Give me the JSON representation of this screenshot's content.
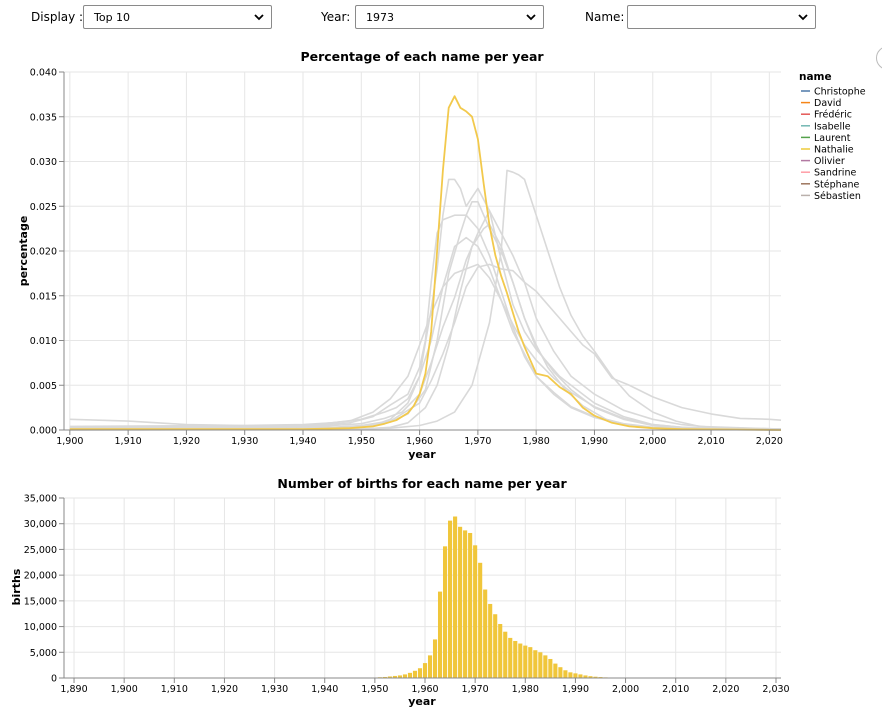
{
  "controls": {
    "display": {
      "label": "Display :",
      "value": "Top 10"
    },
    "year": {
      "label": "Year:",
      "value": "1973"
    },
    "name": {
      "label": "Name:",
      "value": ""
    }
  },
  "colors": {
    "highlight": "#f2c94c",
    "highlight_bar": "#f0c63a",
    "muted_line": "#d9d9d9",
    "grid": "#e6e6e6"
  },
  "icons": [
    "chevron-down-icon",
    "chevron-down-icon",
    "chevron-down-icon",
    "circle-button-icon"
  ],
  "chart_data": [
    {
      "type": "line",
      "title": "Percentage of each name per year",
      "xlabel": "year",
      "ylabel": "percentage",
      "xlim": [
        1899,
        2022
      ],
      "ylim": [
        0,
        0.04
      ],
      "x_ticks": [
        1900,
        1910,
        1920,
        1930,
        1940,
        1950,
        1960,
        1970,
        1980,
        1990,
        2000,
        2010,
        2020
      ],
      "x_tick_labels": [
        "1,900",
        "1,910",
        "1,920",
        "1,930",
        "1,940",
        "1,950",
        "1,960",
        "1,970",
        "1,980",
        "1,990",
        "2,000",
        "2,010",
        "2,020"
      ],
      "y_ticks": [
        0,
        0.005,
        0.01,
        0.015,
        0.02,
        0.025,
        0.03,
        0.035,
        0.04
      ],
      "y_tick_labels": [
        "0.000",
        "0.005",
        "0.010",
        "0.015",
        "0.020",
        "0.025",
        "0.030",
        "0.035",
        "0.040"
      ],
      "grid": true,
      "legend": {
        "title": "name",
        "placement": "right",
        "entries": [
          {
            "name": "Christophe",
            "color": "#4c78a8"
          },
          {
            "name": "David",
            "color": "#f58518"
          },
          {
            "name": "Frédéric",
            "color": "#e45756"
          },
          {
            "name": "Isabelle",
            "color": "#72b7b2"
          },
          {
            "name": "Laurent",
            "color": "#54a24b"
          },
          {
            "name": "Nathalie",
            "color": "#eeca3b"
          },
          {
            "name": "Olivier",
            "color": "#b279a2"
          },
          {
            "name": "Sandrine",
            "color": "#ff9da6"
          },
          {
            "name": "Stéphane",
            "color": "#9d755d"
          },
          {
            "name": "Sébastien",
            "color": "#bab0ac"
          }
        ]
      },
      "highlighted": "Nathalie",
      "series": [
        {
          "name": "Nathalie",
          "x": [
            1900,
            1940,
            1948,
            1950,
            1952,
            1954,
            1956,
            1958,
            1959,
            1960,
            1961,
            1962,
            1963,
            1964,
            1965,
            1966,
            1967,
            1968,
            1969,
            1970,
            1971,
            1972,
            1973,
            1974,
            1975,
            1976,
            1977,
            1978,
            1980,
            1982,
            1984,
            1986,
            1988,
            1990,
            1993,
            1996,
            2000,
            2005,
            2022
          ],
          "y": [
            0.0001,
            0.0001,
            0.0002,
            0.0003,
            0.0004,
            0.0007,
            0.0011,
            0.0019,
            0.0027,
            0.004,
            0.0063,
            0.011,
            0.02,
            0.029,
            0.036,
            0.0373,
            0.036,
            0.0356,
            0.035,
            0.0325,
            0.0275,
            0.0228,
            0.0195,
            0.0172,
            0.0153,
            0.0131,
            0.011,
            0.0093,
            0.0063,
            0.006,
            0.0048,
            0.004,
            0.0025,
            0.0016,
            0.0008,
            0.0004,
            0.0002,
            0.0001,
            0
          ]
        },
        {
          "name": "Christophe",
          "x": [
            1900,
            1940,
            1948,
            1952,
            1955,
            1958,
            1960,
            1962,
            1963,
            1964,
            1965,
            1966,
            1967,
            1968,
            1969,
            1970,
            1972,
            1974,
            1976,
            1978,
            1980,
            1982,
            1984,
            1986,
            1988,
            1990,
            1995,
            2000,
            2005,
            2010,
            2022
          ],
          "y": [
            0.0002,
            0.0002,
            0.0003,
            0.0005,
            0.0012,
            0.003,
            0.006,
            0.0135,
            0.018,
            0.024,
            0.028,
            0.028,
            0.027,
            0.025,
            0.026,
            0.027,
            0.0245,
            0.019,
            0.014,
            0.011,
            0.009,
            0.0075,
            0.006,
            0.005,
            0.004,
            0.003,
            0.0015,
            0.0006,
            0.0003,
            0.0001,
            0
          ]
        },
        {
          "name": "Sébastien",
          "x": [
            1900,
            1950,
            1955,
            1960,
            1963,
            1966,
            1969,
            1972,
            1974,
            1975,
            1976,
            1977,
            1978,
            1980,
            1982,
            1984,
            1986,
            1988,
            1990,
            1993,
            1996,
            2000,
            2004,
            2008,
            2022
          ],
          "y": [
            0.0001,
            0.0001,
            0.0002,
            0.0005,
            0.001,
            0.002,
            0.005,
            0.012,
            0.02,
            0.029,
            0.0288,
            0.0285,
            0.028,
            0.024,
            0.02,
            0.016,
            0.0128,
            0.0105,
            0.0088,
            0.006,
            0.0038,
            0.002,
            0.001,
            0.0004,
            0.0001
          ]
        },
        {
          "name": "Stéphane",
          "x": [
            1900,
            1945,
            1950,
            1955,
            1958,
            1961,
            1963,
            1965,
            1967,
            1968,
            1969,
            1970,
            1971,
            1972,
            1974,
            1976,
            1978,
            1980,
            1983,
            1986,
            1990,
            1995,
            2000,
            2005,
            2022
          ],
          "y": [
            0.0001,
            0.0002,
            0.0004,
            0.0009,
            0.0018,
            0.0045,
            0.01,
            0.0175,
            0.022,
            0.024,
            0.0255,
            0.0255,
            0.024,
            0.0225,
            0.02,
            0.0165,
            0.0125,
            0.0092,
            0.0065,
            0.0045,
            0.0025,
            0.0012,
            0.0005,
            0.0002,
            0.0001
          ]
        },
        {
          "name": "Olivier",
          "x": [
            1900,
            1940,
            1950,
            1954,
            1957,
            1960,
            1962,
            1964,
            1966,
            1968,
            1970,
            1972,
            1974,
            1976,
            1978,
            1980,
            1983,
            1986,
            1990,
            1995,
            2000,
            2005,
            2010,
            2022
          ],
          "y": [
            0.0002,
            0.0003,
            0.0007,
            0.0013,
            0.002,
            0.004,
            0.0075,
            0.0115,
            0.0148,
            0.019,
            0.022,
            0.0245,
            0.022,
            0.0195,
            0.0165,
            0.0125,
            0.0088,
            0.006,
            0.004,
            0.0022,
            0.0012,
            0.0006,
            0.0003,
            0.0001
          ]
        },
        {
          "name": "David",
          "x": [
            1900,
            1945,
            1950,
            1955,
            1960,
            1962,
            1964,
            1966,
            1968,
            1970,
            1972,
            1974,
            1976,
            1978,
            1980,
            1982,
            1984,
            1986,
            1988,
            1990,
            1993,
            1996,
            2000,
            2005,
            2010,
            2015,
            2020,
            2022
          ],
          "y": [
            0.0003,
            0.0003,
            0.0005,
            0.001,
            0.003,
            0.0055,
            0.0085,
            0.012,
            0.016,
            0.0182,
            0.0185,
            0.018,
            0.0178,
            0.0165,
            0.0155,
            0.014,
            0.0125,
            0.011,
            0.0095,
            0.0085,
            0.0058,
            0.005,
            0.0037,
            0.0025,
            0.0018,
            0.0013,
            0.0012,
            0.0011
          ]
        },
        {
          "name": "Laurent",
          "x": [
            1900,
            1940,
            1948,
            1952,
            1955,
            1958,
            1960,
            1961,
            1962,
            1963,
            1964,
            1966,
            1968,
            1970,
            1972,
            1974,
            1976,
            1978,
            1980,
            1983,
            1986,
            1990,
            1995,
            2000,
            2022
          ],
          "y": [
            0.0003,
            0.0004,
            0.0008,
            0.0015,
            0.0028,
            0.004,
            0.007,
            0.01,
            0.0165,
            0.022,
            0.0235,
            0.024,
            0.024,
            0.0225,
            0.0195,
            0.0155,
            0.0115,
            0.0082,
            0.006,
            0.0042,
            0.0026,
            0.0015,
            0.0007,
            0.0003,
            0
          ]
        },
        {
          "name": "Sandrine",
          "x": [
            1900,
            1950,
            1955,
            1958,
            1961,
            1963,
            1965,
            1967,
            1969,
            1971,
            1972,
            1974,
            1976,
            1978,
            1980,
            1982,
            1985,
            1988,
            1992,
            1996,
            2000,
            2022
          ],
          "y": [
            0,
            0.0001,
            0.0003,
            0.0008,
            0.0025,
            0.005,
            0.0095,
            0.0155,
            0.0205,
            0.0225,
            0.023,
            0.0205,
            0.0165,
            0.0125,
            0.0095,
            0.007,
            0.0045,
            0.0027,
            0.0012,
            0.0005,
            0.0002,
            0
          ]
        },
        {
          "name": "Isabelle",
          "x": [
            1900,
            1930,
            1940,
            1945,
            1950,
            1952,
            1954,
            1956,
            1958,
            1960,
            1962,
            1964,
            1966,
            1968,
            1970,
            1972,
            1974,
            1976,
            1978,
            1980,
            1983,
            1986,
            1990,
            1995,
            2000,
            2022
          ],
          "y": [
            0.0004,
            0.0005,
            0.0006,
            0.0008,
            0.0012,
            0.0016,
            0.002,
            0.0025,
            0.0035,
            0.006,
            0.01,
            0.016,
            0.0205,
            0.0215,
            0.0205,
            0.018,
            0.0145,
            0.011,
            0.0085,
            0.006,
            0.004,
            0.0025,
            0.0014,
            0.0006,
            0.0002,
            0
          ]
        },
        {
          "name": "Frédéric",
          "x": [
            1900,
            1905,
            1910,
            1915,
            1920,
            1930,
            1940,
            1948,
            1952,
            1955,
            1958,
            1960,
            1962,
            1964,
            1966,
            1968,
            1970,
            1972,
            1974,
            1976,
            1978,
            1980,
            1983,
            1986,
            1990,
            1995,
            2000,
            2005,
            2010,
            2022
          ],
          "y": [
            0.0012,
            0.0011,
            0.001,
            0.0008,
            0.0006,
            0.0005,
            0.0005,
            0.001,
            0.002,
            0.0035,
            0.006,
            0.0095,
            0.013,
            0.016,
            0.0175,
            0.018,
            0.0185,
            0.017,
            0.0145,
            0.0118,
            0.0095,
            0.0078,
            0.0058,
            0.0042,
            0.0026,
            0.0013,
            0.0006,
            0.0003,
            0.0002,
            0.0001
          ]
        }
      ]
    },
    {
      "type": "bar",
      "title": "Number of births for each name per year",
      "xlabel": "year",
      "ylabel": "births",
      "series_name": "Nathalie",
      "xlim": [
        1888,
        2031
      ],
      "ylim": [
        0,
        35000
      ],
      "x_ticks": [
        1890,
        1900,
        1910,
        1920,
        1930,
        1940,
        1950,
        1960,
        1970,
        1980,
        1990,
        2000,
        2010,
        2020,
        2030
      ],
      "x_tick_labels": [
        "1,890",
        "1,900",
        "1,910",
        "1,920",
        "1,930",
        "1,940",
        "1,950",
        "1,960",
        "1,970",
        "1,980",
        "1,990",
        "2,000",
        "2,010",
        "2,020",
        "2,030"
      ],
      "y_ticks": [
        0,
        5000,
        10000,
        15000,
        20000,
        25000,
        30000,
        35000
      ],
      "y_tick_labels": [
        "0",
        "5,000",
        "10,000",
        "15,000",
        "20,000",
        "25,000",
        "30,000",
        "35,000"
      ],
      "grid": true,
      "x": [
        1950,
        1951,
        1952,
        1953,
        1954,
        1955,
        1956,
        1957,
        1958,
        1959,
        1960,
        1961,
        1962,
        1963,
        1964,
        1965,
        1966,
        1967,
        1968,
        1969,
        1970,
        1971,
        1972,
        1973,
        1974,
        1975,
        1976,
        1977,
        1978,
        1979,
        1980,
        1981,
        1982,
        1983,
        1984,
        1985,
        1986,
        1987,
        1988,
        1989,
        1990,
        1991,
        1992,
        1993,
        1994,
        1995,
        1996,
        1997,
        1998,
        1999,
        2000,
        2001,
        2002,
        2003,
        2004,
        2005
      ],
      "values": [
        100,
        150,
        200,
        300,
        400,
        500,
        700,
        1000,
        1400,
        1900,
        2900,
        4400,
        7500,
        16800,
        25600,
        30600,
        31400,
        29400,
        28700,
        28200,
        25800,
        22400,
        17200,
        14400,
        12400,
        10500,
        9000,
        7800,
        7200,
        6700,
        6300,
        6000,
        5400,
        5000,
        4400,
        3700,
        2800,
        2100,
        1500,
        1100,
        900,
        700,
        500,
        350,
        250,
        180,
        120,
        90,
        60,
        40,
        30,
        20,
        15,
        10,
        6,
        4
      ]
    }
  ]
}
